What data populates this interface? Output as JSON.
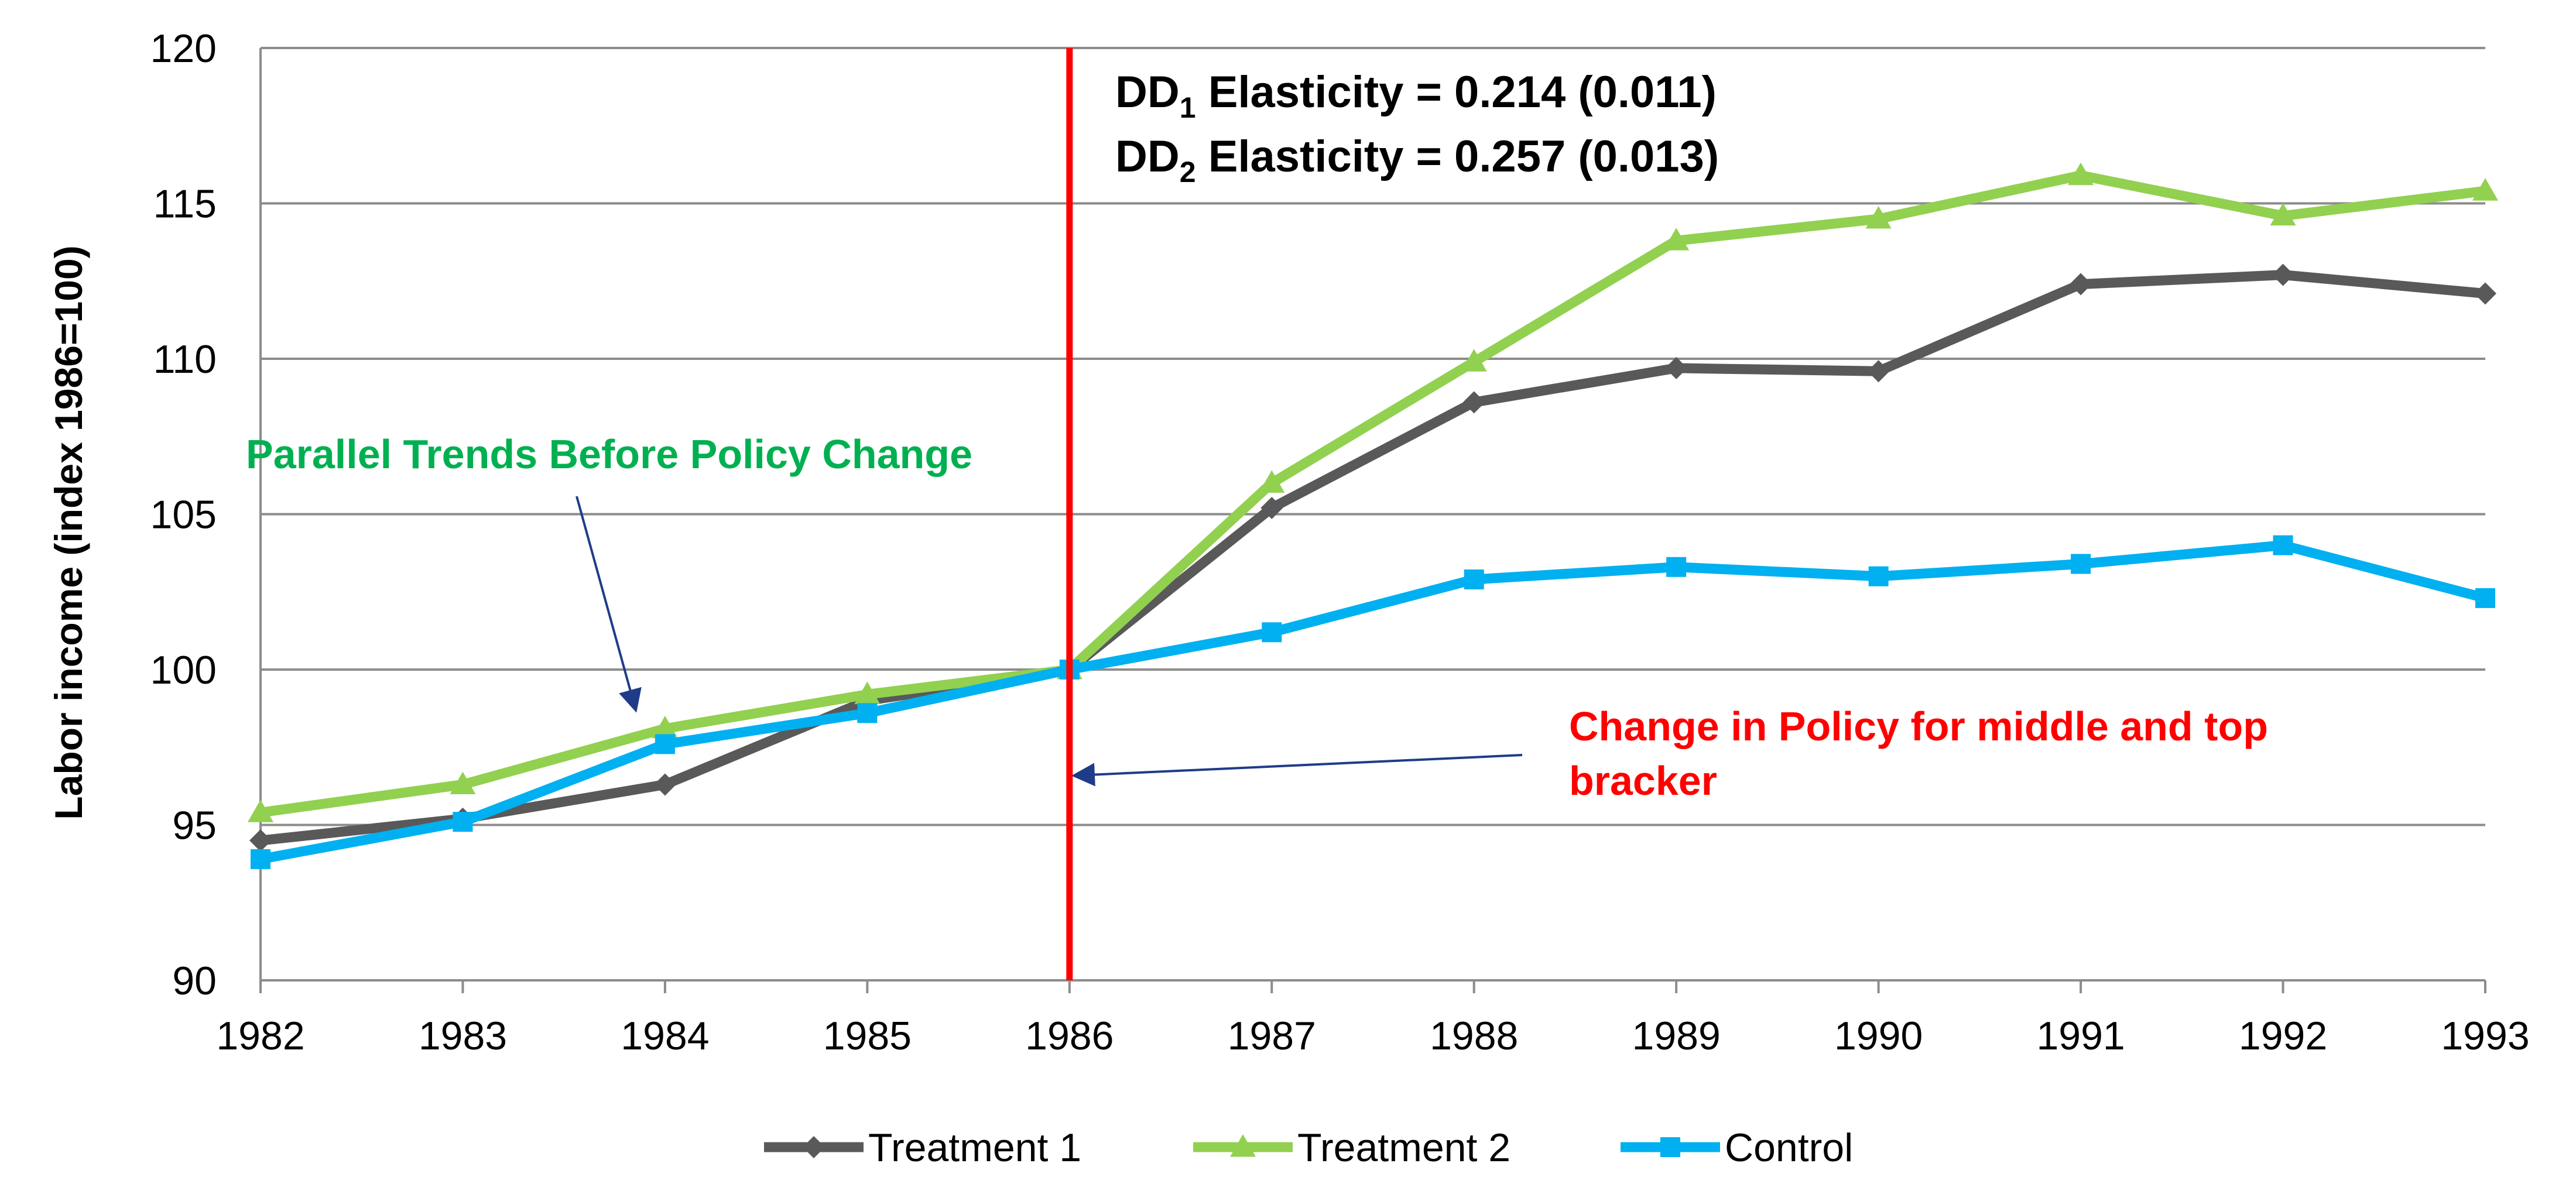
{
  "chart_data": {
    "type": "line",
    "title": "",
    "xlabel": "",
    "ylabel": "Labor  income (index 1986=100)",
    "x": [
      "1982",
      "1983",
      "1984",
      "1985",
      "1986",
      "1987",
      "1988",
      "1989",
      "1990",
      "1991",
      "1992",
      "1993"
    ],
    "yticks": [
      "90",
      "95",
      "100",
      "105",
      "110",
      "115",
      "120"
    ],
    "ylim": [
      90,
      120
    ],
    "grid": "horizontal",
    "legend_position": "bottom",
    "series": [
      {
        "name": "Treatment 1",
        "color": "#595959",
        "marker": "diamond",
        "values": [
          94.5,
          95.2,
          96.3,
          99.0,
          100.0,
          105.2,
          108.6,
          109.7,
          109.6,
          112.4,
          112.7,
          112.1
        ]
      },
      {
        "name": "Treatment 2",
        "color": "#92d050",
        "marker": "triangle",
        "values": [
          95.4,
          96.3,
          98.1,
          99.2,
          100.0,
          106.0,
          109.9,
          113.8,
          114.5,
          115.9,
          114.6,
          115.4
        ]
      },
      {
        "name": "Control",
        "color": "#00b0f0",
        "marker": "square",
        "values": [
          93.9,
          95.1,
          97.6,
          98.6,
          100.0,
          101.2,
          102.9,
          103.3,
          103.0,
          103.4,
          104.0,
          102.3
        ]
      }
    ],
    "policy_line": {
      "x": "1986",
      "color": "#ff0000"
    },
    "annotations": {
      "dd1": {
        "prefix": "DD",
        "sub": "1",
        "text": " Elasticity = 0.214 (0.011)"
      },
      "dd2": {
        "prefix": "DD",
        "sub": "2",
        "text": " Elasticity = 0.257 (0.013)"
      },
      "parallel": {
        "text": "Parallel Trends Before Policy Change",
        "color": "#00b050"
      },
      "policy_change": {
        "line1": "Change in Policy for middle and top",
        "line2": "bracker",
        "color": "#ff0000"
      },
      "arrow_color": "#1f3c88"
    }
  }
}
